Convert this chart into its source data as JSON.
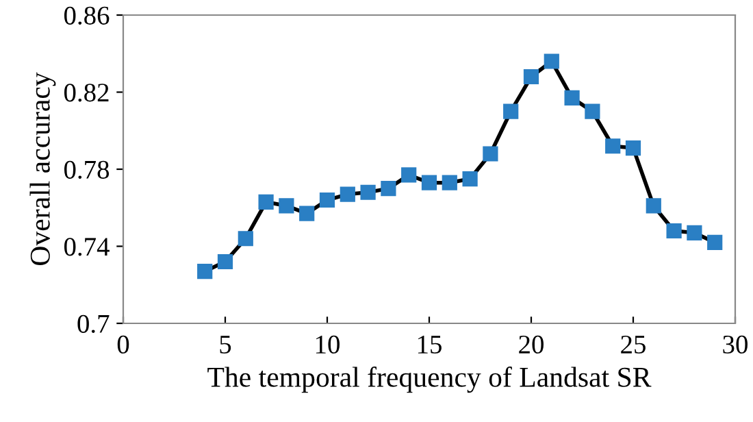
{
  "chart_data": {
    "type": "line",
    "xlabel": "The temporal frequency of Landsat SR",
    "ylabel": "Overall accuracy",
    "xlim": [
      0,
      30
    ],
    "xticks": [
      0,
      5,
      10,
      15,
      20,
      25,
      30
    ],
    "ylim": [
      0.7,
      0.86
    ],
    "yticks": [
      {
        "value": 0.7,
        "label": "0.7"
      },
      0.74,
      0.78,
      0.82,
      0.86
    ],
    "grid": false,
    "marker": "square",
    "line_style": "solid",
    "series": [
      {
        "color": "#2a7fc4",
        "x": [
          4,
          5,
          6,
          7,
          8,
          9,
          10,
          11,
          12,
          13,
          14,
          15,
          16,
          17,
          18,
          19,
          20,
          21,
          22,
          23,
          24,
          25,
          26,
          27,
          28,
          29
        ],
        "values": [
          0.727,
          0.732,
          0.744,
          0.763,
          0.761,
          0.757,
          0.764,
          0.767,
          0.768,
          0.77,
          0.777,
          0.773,
          0.773,
          0.775,
          0.788,
          0.81,
          0.828,
          0.836,
          0.817,
          0.81,
          0.792,
          0.791,
          0.761,
          0.748,
          0.747,
          0.742
        ]
      }
    ]
  }
}
